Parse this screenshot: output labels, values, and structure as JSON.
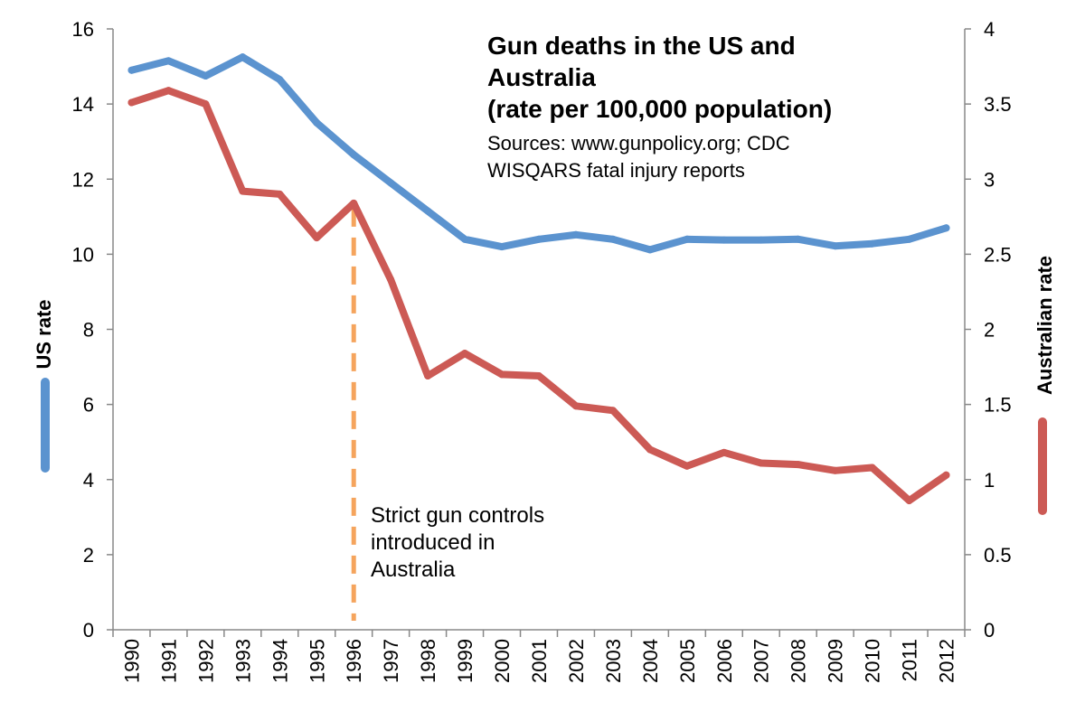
{
  "chart_data": {
    "type": "line",
    "title": [
      "Gun deaths in the US and",
      "Australia",
      "(rate per 100,000 population)"
    ],
    "subtitle": [
      "Sources: www.gunpolicy.org; CDC",
      "WISQARS fatal injury reports"
    ],
    "x": [
      "1990",
      "1991",
      "1992",
      "1993",
      "1994",
      "1995",
      "1996",
      "1997",
      "1998",
      "1999",
      "2000",
      "2001",
      "2002",
      "2003",
      "2004",
      "2005",
      "2006",
      "2007",
      "2008",
      "2009",
      "2010",
      "2011",
      "2012"
    ],
    "y_left": {
      "label": "US rate",
      "range": [
        0,
        16
      ],
      "ticks": [
        "0",
        "2",
        "4",
        "6",
        "8",
        "10",
        "12",
        "14",
        "16"
      ]
    },
    "y_right": {
      "label": "Australian rate",
      "range": [
        0,
        4
      ],
      "ticks": [
        "0",
        "0.5",
        "1",
        "1.5",
        "2",
        "2.5",
        "3",
        "3.5",
        "4"
      ]
    },
    "series": [
      {
        "name": "US rate",
        "axis": "left",
        "color": "#5b93cf",
        "values": [
          14.9,
          15.15,
          14.75,
          15.25,
          14.65,
          13.5,
          12.65,
          11.9,
          11.15,
          10.4,
          10.2,
          10.4,
          10.52,
          10.4,
          10.12,
          10.4,
          10.38,
          10.38,
          10.4,
          10.22,
          10.28,
          10.4,
          10.7
        ]
      },
      {
        "name": "Australian rate",
        "axis": "right",
        "color": "#cc5a55",
        "values": [
          3.51,
          3.59,
          3.5,
          2.92,
          2.9,
          2.61,
          2.84,
          2.33,
          1.69,
          1.84,
          1.7,
          1.69,
          1.49,
          1.46,
          1.2,
          1.09,
          1.18,
          1.11,
          1.1,
          1.06,
          1.08,
          0.86,
          1.03
        ]
      }
    ],
    "annotation": {
      "x": "1996",
      "lines": [
        "Strict gun controls",
        "introduced in",
        "Australia"
      ],
      "color": "#f5a45d"
    },
    "grid": false,
    "legend": "axis-side swatches"
  }
}
